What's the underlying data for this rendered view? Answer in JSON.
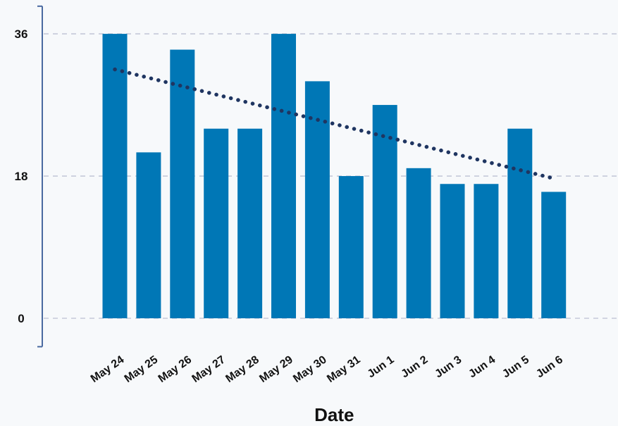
{
  "chart_data": {
    "type": "bar",
    "title": "",
    "xlabel": "Date",
    "ylabel": "",
    "categories": [
      "May 24",
      "May 25",
      "May 26",
      "May 27",
      "May 28",
      "May 29",
      "May 30",
      "May 31",
      "Jun 1",
      "Jun 2",
      "Jun 3",
      "Jun 4",
      "Jun 5",
      "Jun 6"
    ],
    "values": [
      36,
      21,
      34,
      24,
      24,
      36,
      30,
      18,
      27,
      19,
      17,
      17,
      24,
      16
    ],
    "yticks": [
      0,
      18,
      36
    ],
    "ylim": [
      -3.6,
      39.5
    ],
    "grid": true,
    "legend": "none",
    "trendline": {
      "style": "dotted",
      "start": 31.5,
      "end": 17.7
    },
    "colors": {
      "bar": "#0077b6",
      "trendline": "#1f3561",
      "grid": "#c5c9d9",
      "axis": "#4a6aa0",
      "background": "#f7f9fb"
    }
  }
}
